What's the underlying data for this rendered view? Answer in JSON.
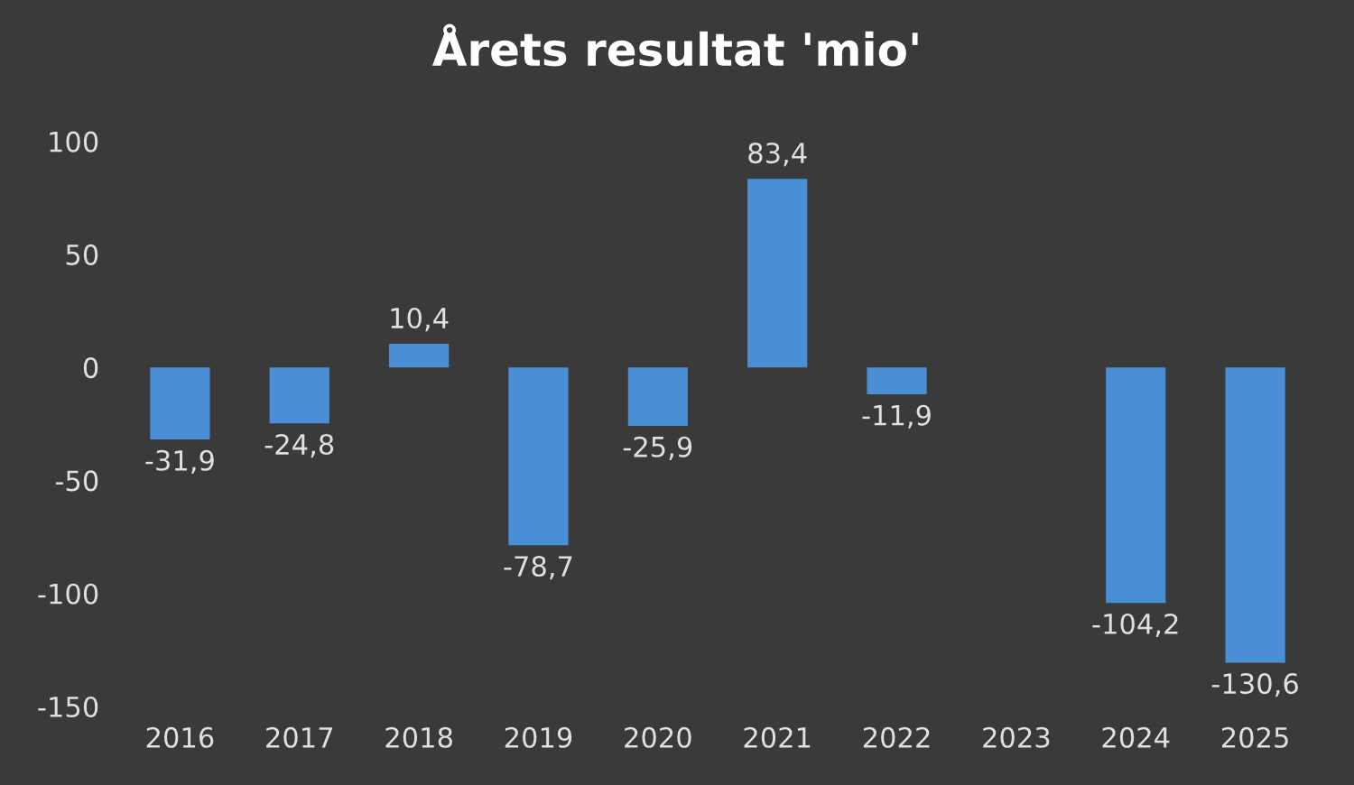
{
  "chart_data": {
    "type": "bar",
    "title": "Årets resultat 'mio'",
    "categories": [
      "2016",
      "2017",
      "2018",
      "2019",
      "2020",
      "2021",
      "2022",
      "2023",
      "2024",
      "2025"
    ],
    "values": [
      -31.9,
      -24.8,
      10.4,
      -78.7,
      -25.9,
      83.4,
      -11.9,
      null,
      -104.2,
      -130.6
    ],
    "value_labels": [
      "-31,9",
      "-24,8",
      "10,4",
      "-78,7",
      "-25,9",
      "83,4",
      "-11,9",
      null,
      "-104,2",
      "-130,6"
    ],
    "color": "#4a8fd6",
    "ylim": [
      -150,
      100
    ],
    "yticks": [
      -150,
      -100,
      -50,
      0,
      50,
      100
    ],
    "grid": false
  }
}
